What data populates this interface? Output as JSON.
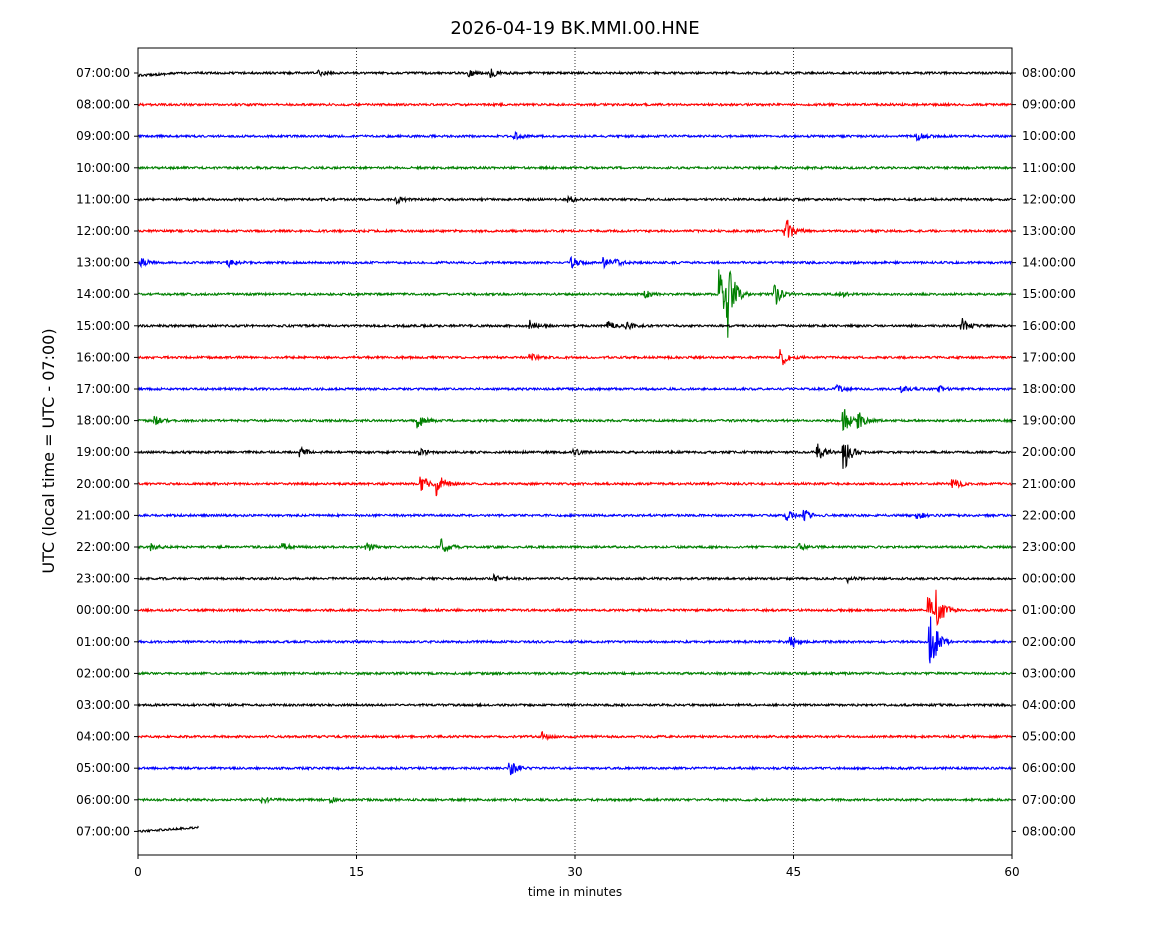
{
  "chart_data": {
    "type": "line",
    "title": "2026-04-19 BK.MMI.00.HNE",
    "xlabel": "time in minutes",
    "ylabel": "UTC (local time = UTC - 07:00)",
    "xlim": [
      0,
      60
    ],
    "x_ticks": [
      "0",
      "15",
      "30",
      "45",
      "60"
    ],
    "x_tick_values": [
      0,
      15,
      30,
      45,
      60
    ],
    "vertical_gridlines_at": [
      15,
      30,
      45
    ],
    "trace_colors": [
      "#000000",
      "#ff0000",
      "#0000ff",
      "#008000"
    ],
    "rows": [
      {
        "left": "07:00:00",
        "right": "08:00:00",
        "color": "#000000",
        "end_minute": 60,
        "events": [
          {
            "t": 24.3,
            "a": 4
          },
          {
            "t": 22.8,
            "a": 3
          },
          {
            "t": 12.5,
            "a": 2
          }
        ]
      },
      {
        "left": "08:00:00",
        "right": "09:00:00",
        "color": "#ff0000",
        "end_minute": 60,
        "events": []
      },
      {
        "left": "09:00:00",
        "right": "10:00:00",
        "color": "#0000ff",
        "end_minute": 60,
        "events": [
          {
            "t": 25.9,
            "a": 3
          },
          {
            "t": 53.5,
            "a": 4
          }
        ]
      },
      {
        "left": "10:00:00",
        "right": "11:00:00",
        "color": "#008000",
        "end_minute": 60,
        "events": []
      },
      {
        "left": "11:00:00",
        "right": "12:00:00",
        "color": "#000000",
        "end_minute": 60,
        "events": [
          {
            "t": 17.8,
            "a": 4
          },
          {
            "t": 29.6,
            "a": 3
          }
        ]
      },
      {
        "left": "12:00:00",
        "right": "13:00:00",
        "color": "#ff0000",
        "end_minute": 60,
        "events": [
          {
            "t": 44.5,
            "a": 16
          }
        ]
      },
      {
        "left": "13:00:00",
        "right": "14:00:00",
        "color": "#0000ff",
        "end_minute": 60,
        "events": [
          {
            "t": 0.3,
            "a": 4
          },
          {
            "t": 6.2,
            "a": 4
          },
          {
            "t": 29.8,
            "a": 6
          },
          {
            "t": 32.0,
            "a": 6
          },
          {
            "t": 32.8,
            "a": 3
          }
        ]
      },
      {
        "left": "14:00:00",
        "right": "15:00:00",
        "color": "#008000",
        "end_minute": 60,
        "events": [
          {
            "t": 40.0,
            "a": 24
          },
          {
            "t": 40.5,
            "a": 36
          },
          {
            "t": 43.8,
            "a": 10
          },
          {
            "t": 34.9,
            "a": 3
          },
          {
            "t": 48.3,
            "a": 2
          }
        ]
      },
      {
        "left": "15:00:00",
        "right": "16:00:00",
        "color": "#000000",
        "end_minute": 60,
        "events": [
          {
            "t": 27.0,
            "a": 6
          },
          {
            "t": 32.3,
            "a": 4
          },
          {
            "t": 33.6,
            "a": 4
          },
          {
            "t": 56.6,
            "a": 7
          }
        ]
      },
      {
        "left": "16:00:00",
        "right": "17:00:00",
        "color": "#ff0000",
        "end_minute": 60,
        "events": [
          {
            "t": 27.0,
            "a": 3
          },
          {
            "t": 44.2,
            "a": 8
          }
        ]
      },
      {
        "left": "17:00:00",
        "right": "18:00:00",
        "color": "#0000ff",
        "end_minute": 60,
        "events": [
          {
            "t": 48.0,
            "a": 3
          },
          {
            "t": 52.5,
            "a": 3
          },
          {
            "t": 55.0,
            "a": 3
          }
        ]
      },
      {
        "left": "18:00:00",
        "right": "19:00:00",
        "color": "#008000",
        "end_minute": 60,
        "events": [
          {
            "t": 1.2,
            "a": 4
          },
          {
            "t": 19.3,
            "a": 7
          },
          {
            "t": 48.5,
            "a": 11
          },
          {
            "t": 49.5,
            "a": 8
          }
        ]
      },
      {
        "left": "19:00:00",
        "right": "20:00:00",
        "color": "#000000",
        "end_minute": 60,
        "events": [
          {
            "t": 11.2,
            "a": 4
          },
          {
            "t": 19.4,
            "a": 3
          },
          {
            "t": 30.0,
            "a": 3
          },
          {
            "t": 46.7,
            "a": 8
          },
          {
            "t": 48.5,
            "a": 18
          }
        ]
      },
      {
        "left": "20:00:00",
        "right": "21:00:00",
        "color": "#ff0000",
        "end_minute": 60,
        "events": [
          {
            "t": 19.5,
            "a": 8
          },
          {
            "t": 20.6,
            "a": 11
          },
          {
            "t": 56.0,
            "a": 6
          }
        ]
      },
      {
        "left": "21:00:00",
        "right": "22:00:00",
        "color": "#0000ff",
        "end_minute": 60,
        "events": [
          {
            "t": 44.6,
            "a": 5
          },
          {
            "t": 45.8,
            "a": 5
          },
          {
            "t": 53.5,
            "a": 4
          }
        ]
      },
      {
        "left": "22:00:00",
        "right": "23:00:00",
        "color": "#008000",
        "end_minute": 60,
        "events": [
          {
            "t": 1.0,
            "a": 3
          },
          {
            "t": 10.0,
            "a": 4
          },
          {
            "t": 15.7,
            "a": 4
          },
          {
            "t": 20.9,
            "a": 8
          },
          {
            "t": 45.5,
            "a": 3
          }
        ]
      },
      {
        "left": "23:00:00",
        "right": "00:00:00",
        "color": "#000000",
        "end_minute": 60,
        "events": [
          {
            "t": 24.5,
            "a": 3
          },
          {
            "t": 48.8,
            "a": 3
          }
        ]
      },
      {
        "left": "00:00:00",
        "right": "01:00:00",
        "color": "#ff0000",
        "end_minute": 60,
        "events": [
          {
            "t": 54.3,
            "a": 14
          },
          {
            "t": 54.9,
            "a": 16
          }
        ]
      },
      {
        "left": "01:00:00",
        "right": "02:00:00",
        "color": "#0000ff",
        "end_minute": 60,
        "events": [
          {
            "t": 44.8,
            "a": 7
          },
          {
            "t": 54.4,
            "a": 38
          }
        ]
      },
      {
        "left": "02:00:00",
        "right": "03:00:00",
        "color": "#008000",
        "end_minute": 60,
        "events": []
      },
      {
        "left": "03:00:00",
        "right": "04:00:00",
        "color": "#000000",
        "end_minute": 60,
        "events": []
      },
      {
        "left": "04:00:00",
        "right": "05:00:00",
        "color": "#ff0000",
        "end_minute": 60,
        "events": [
          {
            "t": 27.8,
            "a": 4
          }
        ]
      },
      {
        "left": "05:00:00",
        "right": "06:00:00",
        "color": "#0000ff",
        "end_minute": 60,
        "events": [
          {
            "t": 25.6,
            "a": 10
          }
        ]
      },
      {
        "left": "06:00:00",
        "right": "07:00:00",
        "color": "#008000",
        "end_minute": 60,
        "events": [
          {
            "t": 8.6,
            "a": 3
          },
          {
            "t": 13.3,
            "a": 3
          }
        ]
      },
      {
        "left": "07:00:00",
        "right": "08:00:00",
        "color": "#000000",
        "end_minute": 4.2,
        "events": []
      }
    ]
  }
}
